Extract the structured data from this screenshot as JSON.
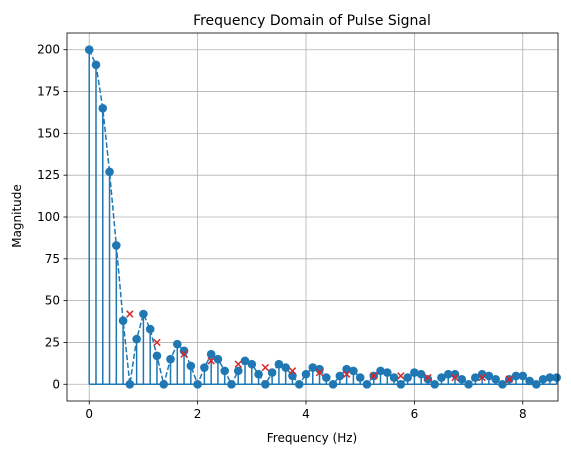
{
  "chart_data": {
    "type": "stem",
    "title": "Frequency Domain of Pulse Signal",
    "xlabel": "Frequency (Hz)",
    "ylabel": "Magnitude",
    "xlim": [
      -0.41,
      8.65
    ],
    "ylim": [
      -10,
      210
    ],
    "x_ticks": [
      0,
      2,
      4,
      6,
      8
    ],
    "x_tick_labels": [
      "0",
      "2",
      "4",
      "6",
      "8"
    ],
    "y_ticks": [
      0,
      25,
      50,
      75,
      100,
      125,
      150,
      175,
      200
    ],
    "y_tick_labels": [
      "0",
      "25",
      "50",
      "75",
      "100",
      "125",
      "150",
      "175",
      "200"
    ],
    "grid": true,
    "stem_color": "#1f77b4",
    "marker_color": "#d62728",
    "freq_step": 0.125,
    "magnitudes": [
      200,
      191,
      165,
      127,
      83,
      38,
      0,
      27,
      42,
      33,
      17,
      0,
      15,
      24,
      20,
      11,
      0,
      10,
      18,
      15,
      8,
      0,
      8,
      14,
      12,
      6,
      0,
      7,
      12,
      10,
      5,
      0,
      6,
      10,
      9,
      4,
      0,
      5,
      9,
      8,
      4,
      0,
      5,
      8,
      7,
      4,
      0,
      4,
      7,
      6,
      3,
      0,
      4,
      6,
      6,
      3,
      0,
      4,
      6,
      5,
      3,
      0,
      3,
      5,
      5,
      2,
      0,
      3,
      4,
      4
    ],
    "peaks": [
      {
        "x": 0.75,
        "y": 42
      },
      {
        "x": 1.25,
        "y": 25
      },
      {
        "x": 1.75,
        "y": 18
      },
      {
        "x": 2.25,
        "y": 14
      },
      {
        "x": 2.75,
        "y": 12
      },
      {
        "x": 3.25,
        "y": 10
      },
      {
        "x": 3.75,
        "y": 8
      },
      {
        "x": 4.25,
        "y": 7
      },
      {
        "x": 4.75,
        "y": 6
      },
      {
        "x": 5.25,
        "y": 5
      },
      {
        "x": 5.75,
        "y": 5
      },
      {
        "x": 6.25,
        "y": 4
      },
      {
        "x": 6.75,
        "y": 4
      },
      {
        "x": 7.25,
        "y": 4
      },
      {
        "x": 7.75,
        "y": 3
      }
    ]
  }
}
